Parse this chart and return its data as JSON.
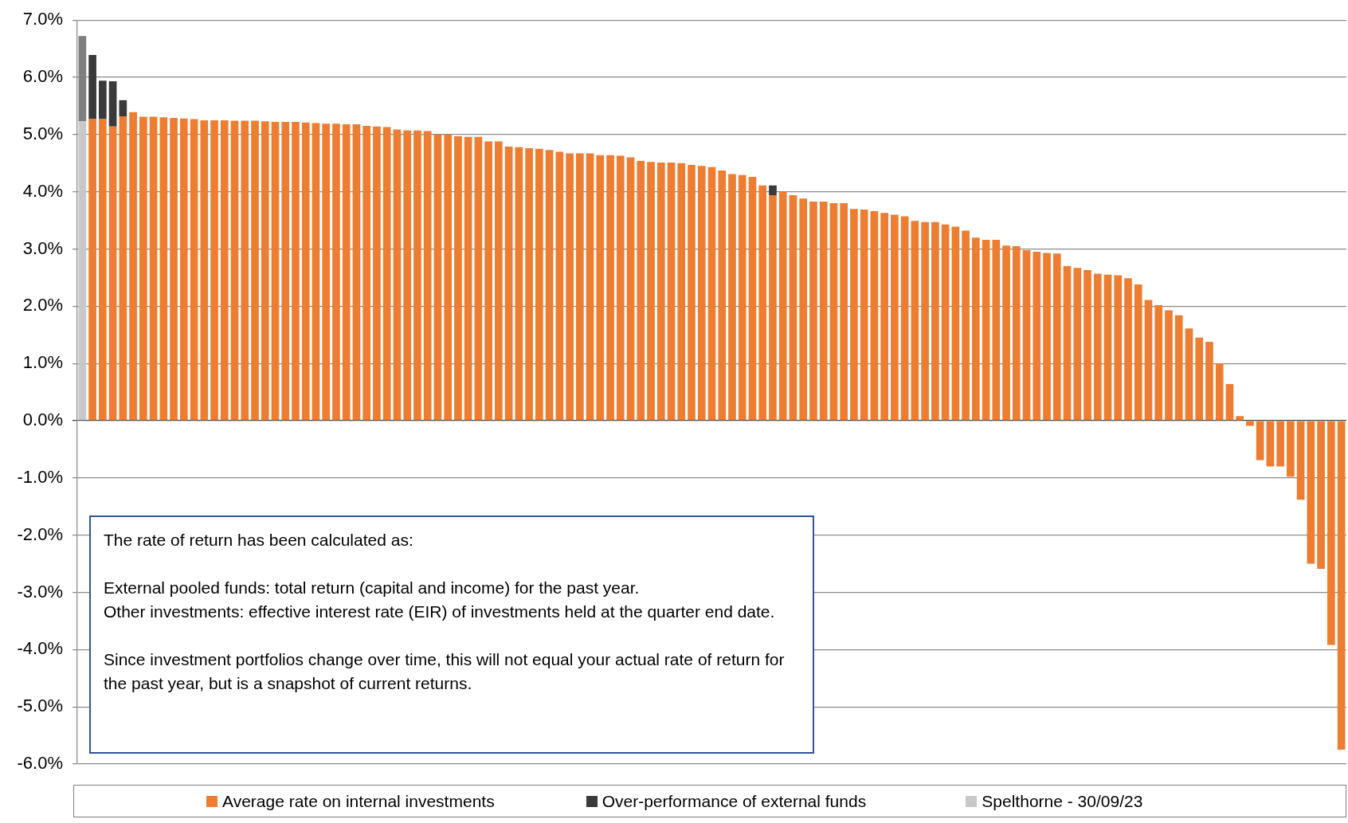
{
  "chart_data": {
    "type": "bar",
    "stacked": true,
    "grid": "y",
    "tick_labels": "y",
    "legend": "bottom",
    "categories": [
      null,
      null,
      null,
      null,
      null,
      null,
      null,
      null,
      null,
      null,
      null,
      null,
      null,
      null,
      null,
      null,
      null,
      null,
      null,
      null,
      null,
      null,
      null,
      null,
      null,
      null,
      null,
      null,
      null,
      null,
      null,
      null,
      null,
      null,
      null,
      null,
      null,
      null,
      null,
      null,
      null,
      null,
      null,
      null,
      null,
      null,
      null,
      null,
      null,
      null,
      null,
      null,
      null,
      null,
      null,
      null,
      null,
      null,
      null,
      null,
      null,
      null,
      null,
      null,
      null,
      null,
      null,
      null,
      null,
      null,
      null,
      null,
      null,
      null,
      null,
      null,
      null,
      null,
      null,
      null,
      null,
      null,
      null,
      null,
      null,
      null,
      null,
      null,
      null,
      null,
      null,
      null,
      null,
      null,
      null,
      null,
      null,
      null,
      null,
      null,
      null,
      null,
      null,
      null,
      null,
      null,
      null,
      null,
      null,
      null,
      null,
      null,
      null,
      null,
      null,
      null,
      null,
      null,
      null,
      null,
      null,
      null,
      null,
      null,
      null
    ],
    "series": [
      {
        "name": "Spelthorne - 30/09/23",
        "color": "#c8c8c8",
        "values": [
          5.23,
          null,
          null,
          null,
          null,
          null,
          null,
          null,
          null,
          null,
          null,
          null,
          null,
          null,
          null,
          null,
          null,
          null,
          null,
          null,
          null,
          null,
          null,
          null,
          null,
          null,
          null,
          null,
          null,
          null,
          null,
          null,
          null,
          null,
          null,
          null,
          null,
          null,
          null,
          null,
          null,
          null,
          null,
          null,
          null,
          null,
          null,
          null,
          null,
          null,
          null,
          null,
          null,
          null,
          null,
          null,
          null,
          null,
          null,
          null,
          null,
          null,
          null,
          null,
          null,
          null,
          null,
          null,
          null,
          null,
          null,
          null,
          null,
          null,
          null,
          null,
          null,
          null,
          null,
          null,
          null,
          null,
          null,
          null,
          null,
          null,
          null,
          null,
          null,
          null,
          null,
          null,
          null,
          null,
          null,
          null,
          null,
          null,
          null,
          null,
          null,
          null,
          null,
          null,
          null,
          null,
          null,
          null,
          null,
          null,
          null,
          null,
          null,
          null,
          null,
          null,
          null,
          null,
          null,
          null,
          null,
          null,
          null,
          null,
          null
        ]
      },
      {
        "name": "Average rate on internal investments",
        "color": "#ed7d31",
        "values": [
          null,
          5.27,
          5.27,
          5.14,
          5.32,
          5.39,
          5.31,
          5.31,
          5.3,
          5.29,
          5.28,
          5.27,
          5.25,
          5.25,
          5.25,
          5.24,
          5.24,
          5.24,
          5.23,
          5.22,
          5.22,
          5.22,
          5.21,
          5.2,
          5.19,
          5.19,
          5.18,
          5.18,
          5.15,
          5.14,
          5.13,
          5.09,
          5.07,
          5.07,
          5.06,
          5.0,
          5.0,
          4.97,
          4.96,
          4.96,
          4.88,
          4.88,
          4.79,
          4.78,
          4.76,
          4.75,
          4.73,
          4.7,
          4.67,
          4.67,
          4.67,
          4.64,
          4.64,
          4.63,
          4.6,
          4.54,
          4.52,
          4.51,
          4.51,
          4.5,
          4.47,
          4.45,
          4.43,
          4.37,
          4.31,
          4.29,
          4.26,
          4.11,
          3.94,
          4.0,
          3.94,
          3.88,
          3.83,
          3.83,
          3.8,
          3.8,
          3.7,
          3.69,
          3.66,
          3.63,
          3.6,
          3.57,
          3.49,
          3.47,
          3.47,
          3.43,
          3.39,
          3.32,
          3.2,
          3.16,
          3.16,
          3.06,
          3.05,
          2.98,
          2.95,
          2.93,
          2.92,
          2.7,
          2.67,
          2.63,
          2.57,
          2.55,
          2.54,
          2.49,
          2.38,
          2.11,
          2.02,
          1.93,
          1.84,
          1.61,
          1.45,
          1.38,
          1.0,
          0.64,
          0.08,
          -0.09,
          -0.69,
          -0.8,
          -0.8,
          -0.98,
          -1.38,
          -2.5,
          -2.59,
          -3.92,
          -5.75
        ]
      },
      {
        "name": "Over-performance of external funds",
        "color": "#3a3a3a",
        "values": [
          null,
          1.12,
          0.67,
          0.79,
          0.28,
          null,
          null,
          null,
          null,
          null,
          null,
          null,
          null,
          null,
          null,
          null,
          null,
          null,
          null,
          null,
          null,
          null,
          null,
          null,
          null,
          null,
          null,
          null,
          null,
          null,
          null,
          null,
          null,
          null,
          null,
          null,
          null,
          null,
          null,
          null,
          null,
          null,
          null,
          null,
          null,
          null,
          null,
          null,
          null,
          null,
          null,
          null,
          null,
          null,
          null,
          null,
          null,
          null,
          null,
          null,
          null,
          null,
          null,
          null,
          null,
          null,
          null,
          null,
          0.17,
          null,
          null,
          null,
          null,
          null,
          null,
          null,
          null,
          null,
          null,
          null,
          null,
          null,
          null,
          null,
          null,
          null,
          null,
          null,
          null,
          null,
          null,
          null,
          null,
          null,
          null,
          null,
          null,
          null,
          null,
          null,
          null,
          null,
          null,
          null,
          null,
          null,
          null,
          null,
          null,
          null,
          null,
          null,
          null,
          null,
          null,
          null,
          null,
          null,
          null,
          null,
          null,
          null,
          null,
          null,
          null
        ]
      },
      {
        "color": "#7f7f7f",
        "values": [
          1.49,
          null,
          null,
          null,
          null,
          null,
          null,
          null,
          null,
          null,
          null,
          null,
          null,
          null,
          null,
          null,
          null,
          null,
          null,
          null,
          null,
          null,
          null,
          null,
          null,
          null,
          null,
          null,
          null,
          null,
          null,
          null,
          null,
          null,
          null,
          null,
          null,
          null,
          null,
          null,
          null,
          null,
          null,
          null,
          null,
          null,
          null,
          null,
          null,
          null,
          null,
          null,
          null,
          null,
          null,
          null,
          null,
          null,
          null,
          null,
          null,
          null,
          null,
          null,
          null,
          null,
          null,
          null,
          null,
          null,
          null,
          null,
          null,
          null,
          null,
          null,
          null,
          null,
          null,
          null,
          null,
          null,
          null,
          null,
          null,
          null,
          null,
          null,
          null,
          null,
          null,
          null,
          null,
          null,
          null,
          null,
          null,
          null,
          null,
          null,
          null,
          null,
          null,
          null,
          null,
          null,
          null,
          null,
          null,
          null,
          null,
          null,
          null,
          null,
          null,
          null,
          null,
          null,
          null,
          null,
          null,
          null,
          null,
          null,
          null
        ]
      }
    ],
    "ylim": [
      -6,
      7
    ],
    "yticks": [
      {
        "value": -6,
        "label": "-6.0%"
      },
      {
        "value": -5,
        "label": "-5.0%"
      },
      {
        "value": -4,
        "label": "-4.0%"
      },
      {
        "value": -3,
        "label": "-3.0%"
      },
      {
        "value": -2,
        "label": "-2.0%"
      },
      {
        "value": -1,
        "label": "-1.0%"
      },
      {
        "value": 0,
        "label": "0.0%"
      },
      {
        "value": 1,
        "label": "1.0%"
      },
      {
        "value": 2,
        "label": "2.0%"
      },
      {
        "value": 3,
        "label": "3.0%"
      },
      {
        "value": 4,
        "label": "4.0%"
      },
      {
        "value": 5,
        "label": "5.0%"
      },
      {
        "value": 6,
        "label": "6.0%"
      },
      {
        "value": 7,
        "label": "7.0%"
      }
    ],
    "annotations": [
      "The rate of return has been calculated as:\n\nExternal pooled funds: total return (capital and income) for the past year.\nOther investments: effective interest rate (EIR) of investments held at the quarter end date.\n\nSince investment portfolios change over time, this will not equal your actual rate of return for the past year, but is a snapshot of current returns."
    ]
  }
}
